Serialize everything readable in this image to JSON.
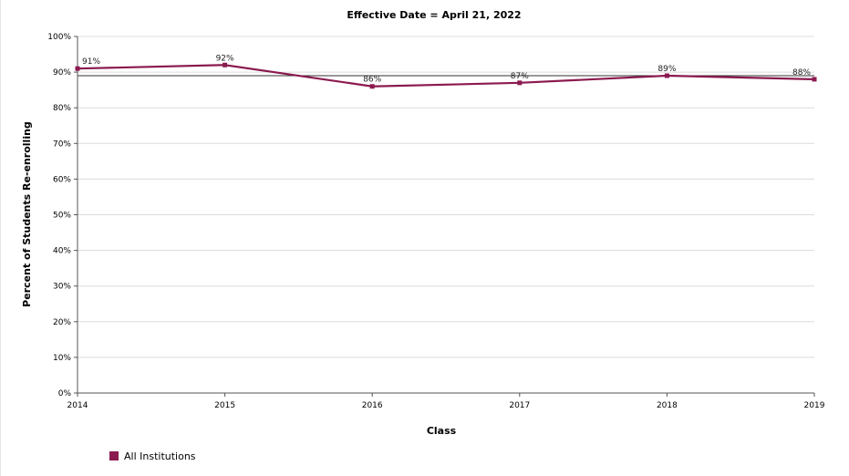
{
  "chart_data": {
    "type": "line",
    "title": "Effective Date = April 21, 2022",
    "xlabel": "Class",
    "ylabel": "Percent of Students Re-enrolling",
    "categories": [
      "2014",
      "2015",
      "2016",
      "2017",
      "2018",
      "2019"
    ],
    "ylim": [
      0,
      100
    ],
    "y_ticks": [
      "0%",
      "10%",
      "20%",
      "30%",
      "40%",
      "50%",
      "60%",
      "70%",
      "80%",
      "90%",
      "100%"
    ],
    "series": [
      {
        "name": "All Institutions",
        "values": [
          91,
          92,
          86,
          87,
          89,
          88
        ],
        "data_labels": [
          "91%",
          "92%",
          "86%",
          "87%",
          "89%",
          "88%"
        ],
        "color": "#8b1a4f"
      }
    ],
    "reference_line": {
      "value": 89
    },
    "grid": true,
    "legend_position": "bottom-left"
  }
}
